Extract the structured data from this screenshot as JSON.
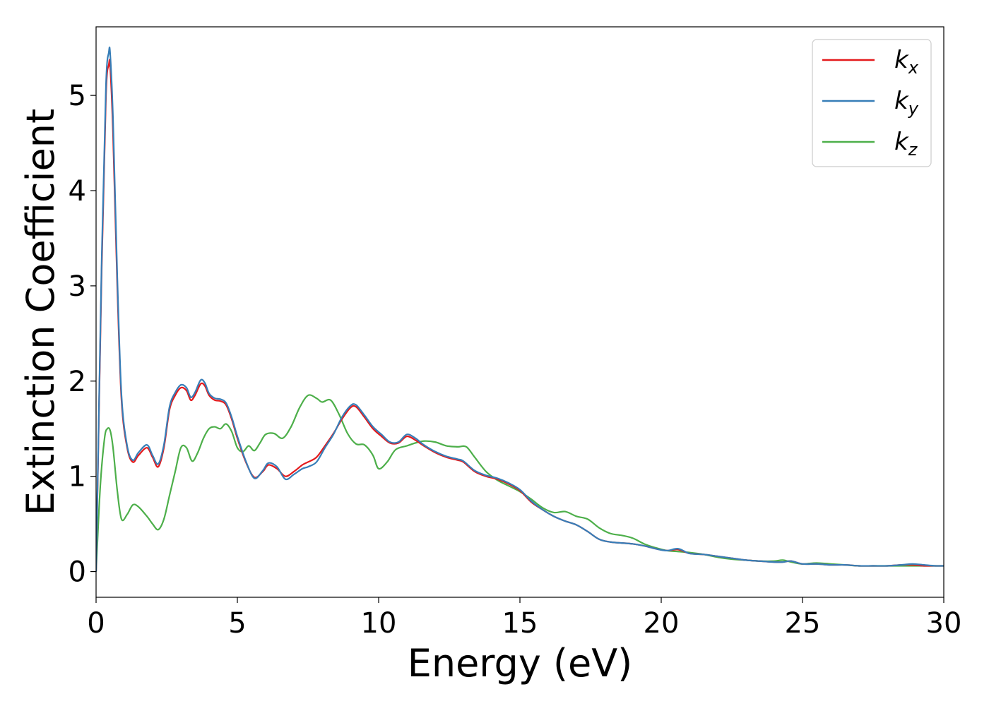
{
  "chart_data": {
    "type": "line",
    "xlabel": "Energy (eV)",
    "ylabel": "Extinction Coefficient",
    "xlim": [
      0,
      30
    ],
    "ylim": [
      -0.27,
      5.72
    ],
    "xticks": [
      "0",
      "5",
      "10",
      "15",
      "20",
      "25",
      "30"
    ],
    "yticks": [
      "0",
      "1",
      "2",
      "3",
      "4",
      "5"
    ],
    "grid": false,
    "legend_position": "top-right",
    "series": [
      {
        "name": "k_x",
        "label_base": "k",
        "label_sub": "x",
        "color": "#e41a1c",
        "x": [
          0,
          0.2,
          0.35,
          0.45,
          0.5,
          0.6,
          0.75,
          0.9,
          1.1,
          1.3,
          1.5,
          1.8,
          2.0,
          2.2,
          2.4,
          2.6,
          2.8,
          3.0,
          3.2,
          3.35,
          3.5,
          3.7,
          3.85,
          4.0,
          4.2,
          4.4,
          4.6,
          4.8,
          5.0,
          5.3,
          5.6,
          5.9,
          6.1,
          6.4,
          6.7,
          7.0,
          7.3,
          7.5,
          7.8,
          8.1,
          8.4,
          8.7,
          9.0,
          9.2,
          9.5,
          9.8,
          10.1,
          10.4,
          10.7,
          11.0,
          11.3,
          11.6,
          12.0,
          12.4,
          12.8,
          13.0,
          13.4,
          13.8,
          14.2,
          14.6,
          15.0,
          15.4,
          15.8,
          16.2,
          16.6,
          17.0,
          17.4,
          17.8,
          18.2,
          18.6,
          19.0,
          19.4,
          19.8,
          20.2,
          20.6,
          21.0,
          21.5,
          22.0,
          22.5,
          23.0,
          23.5,
          24.0,
          24.3,
          24.6,
          25.0,
          25.5,
          26.0,
          26.5,
          27.0,
          27.5,
          28.0,
          28.5,
          28.9,
          29.3,
          29.7,
          30.0
        ],
        "y": [
          0,
          3.2,
          5.0,
          5.32,
          5.3,
          4.6,
          3.0,
          1.8,
          1.3,
          1.15,
          1.22,
          1.3,
          1.2,
          1.1,
          1.3,
          1.7,
          1.85,
          1.93,
          1.9,
          1.8,
          1.85,
          1.97,
          1.95,
          1.85,
          1.8,
          1.79,
          1.75,
          1.6,
          1.4,
          1.15,
          0.99,
          1.05,
          1.12,
          1.08,
          1.0,
          1.05,
          1.12,
          1.15,
          1.2,
          1.32,
          1.45,
          1.6,
          1.72,
          1.73,
          1.62,
          1.5,
          1.42,
          1.35,
          1.35,
          1.42,
          1.38,
          1.32,
          1.25,
          1.2,
          1.17,
          1.15,
          1.05,
          1.0,
          0.97,
          0.92,
          0.85,
          0.73,
          0.65,
          0.58,
          0.53,
          0.49,
          0.42,
          0.34,
          0.31,
          0.3,
          0.29,
          0.27,
          0.24,
          0.22,
          0.23,
          0.19,
          0.18,
          0.16,
          0.14,
          0.12,
          0.11,
          0.1,
          0.1,
          0.11,
          0.08,
          0.08,
          0.07,
          0.07,
          0.06,
          0.06,
          0.06,
          0.07,
          0.07,
          0.06,
          0.06,
          0.06
        ]
      },
      {
        "name": "k_y",
        "label_base": "k",
        "label_sub": "y",
        "color": "#377eb8",
        "x": [
          0,
          0.2,
          0.35,
          0.45,
          0.5,
          0.6,
          0.75,
          0.9,
          1.1,
          1.3,
          1.5,
          1.8,
          2.0,
          2.2,
          2.4,
          2.6,
          2.8,
          3.0,
          3.2,
          3.35,
          3.5,
          3.7,
          3.85,
          4.0,
          4.2,
          4.4,
          4.6,
          4.8,
          5.0,
          5.3,
          5.6,
          5.9,
          6.1,
          6.4,
          6.7,
          7.0,
          7.3,
          7.5,
          7.8,
          8.1,
          8.4,
          8.7,
          9.0,
          9.2,
          9.5,
          9.8,
          10.1,
          10.4,
          10.7,
          11.0,
          11.3,
          11.6,
          12.0,
          12.4,
          12.8,
          13.0,
          13.4,
          13.8,
          14.2,
          14.6,
          15.0,
          15.4,
          15.8,
          16.2,
          16.6,
          17.0,
          17.4,
          17.8,
          18.2,
          18.6,
          19.0,
          19.4,
          19.8,
          20.2,
          20.6,
          21.0,
          21.5,
          22.0,
          22.5,
          23.0,
          23.5,
          24.0,
          24.3,
          24.6,
          25.0,
          25.5,
          26.0,
          26.5,
          27.0,
          27.5,
          28.0,
          28.5,
          28.9,
          29.3,
          29.7,
          30.0
        ],
        "y": [
          0,
          3.3,
          5.1,
          5.45,
          5.43,
          4.75,
          3.1,
          1.85,
          1.32,
          1.17,
          1.25,
          1.33,
          1.22,
          1.13,
          1.33,
          1.73,
          1.88,
          1.96,
          1.93,
          1.83,
          1.88,
          2.01,
          1.98,
          1.87,
          1.82,
          1.81,
          1.77,
          1.62,
          1.42,
          1.16,
          0.98,
          1.06,
          1.14,
          1.1,
          0.97,
          1.02,
          1.08,
          1.1,
          1.15,
          1.3,
          1.44,
          1.62,
          1.74,
          1.75,
          1.64,
          1.52,
          1.44,
          1.36,
          1.36,
          1.44,
          1.4,
          1.33,
          1.26,
          1.21,
          1.18,
          1.16,
          1.06,
          1.01,
          0.98,
          0.93,
          0.86,
          0.74,
          0.65,
          0.58,
          0.53,
          0.49,
          0.42,
          0.34,
          0.31,
          0.3,
          0.29,
          0.27,
          0.24,
          0.22,
          0.24,
          0.19,
          0.18,
          0.16,
          0.14,
          0.12,
          0.11,
          0.1,
          0.1,
          0.11,
          0.08,
          0.08,
          0.07,
          0.07,
          0.06,
          0.06,
          0.06,
          0.07,
          0.08,
          0.07,
          0.06,
          0.06
        ]
      },
      {
        "name": "k_z",
        "label_base": "k",
        "label_sub": "z",
        "color": "#4daf4a",
        "x": [
          0,
          0.15,
          0.3,
          0.4,
          0.5,
          0.6,
          0.75,
          0.9,
          1.1,
          1.3,
          1.5,
          1.8,
          2.0,
          2.2,
          2.4,
          2.6,
          2.8,
          3.0,
          3.2,
          3.4,
          3.6,
          3.8,
          4.0,
          4.2,
          4.4,
          4.6,
          4.8,
          5.0,
          5.2,
          5.4,
          5.6,
          5.8,
          6.0,
          6.3,
          6.6,
          6.9,
          7.2,
          7.5,
          7.8,
          8.0,
          8.3,
          8.6,
          8.9,
          9.2,
          9.5,
          9.8,
          10.0,
          10.3,
          10.6,
          11.0,
          11.3,
          11.6,
          12.0,
          12.4,
          12.8,
          13.1,
          13.4,
          13.8,
          14.2,
          14.6,
          15.0,
          15.4,
          15.8,
          16.2,
          16.6,
          17.0,
          17.4,
          17.8,
          18.2,
          18.6,
          19.0,
          19.4,
          19.8,
          20.2,
          20.6,
          21.0,
          21.5,
          22.0,
          22.5,
          23.0,
          23.5,
          24.0,
          24.3,
          24.6,
          25.0,
          25.5,
          26.0,
          26.5,
          27.0,
          27.5,
          28.0,
          28.5,
          28.9,
          29.3,
          29.7,
          30.0
        ],
        "y": [
          0,
          0.9,
          1.4,
          1.5,
          1.48,
          1.3,
          0.85,
          0.55,
          0.6,
          0.7,
          0.68,
          0.58,
          0.5,
          0.44,
          0.55,
          0.8,
          1.05,
          1.3,
          1.3,
          1.16,
          1.25,
          1.4,
          1.5,
          1.52,
          1.5,
          1.55,
          1.47,
          1.3,
          1.26,
          1.32,
          1.27,
          1.35,
          1.44,
          1.45,
          1.4,
          1.52,
          1.72,
          1.85,
          1.82,
          1.78,
          1.8,
          1.65,
          1.45,
          1.34,
          1.33,
          1.22,
          1.08,
          1.15,
          1.28,
          1.32,
          1.35,
          1.37,
          1.36,
          1.32,
          1.31,
          1.31,
          1.2,
          1.05,
          0.96,
          0.9,
          0.84,
          0.76,
          0.67,
          0.62,
          0.63,
          0.58,
          0.55,
          0.46,
          0.4,
          0.38,
          0.35,
          0.29,
          0.25,
          0.22,
          0.21,
          0.2,
          0.18,
          0.15,
          0.13,
          0.12,
          0.11,
          0.11,
          0.12,
          0.1,
          0.08,
          0.09,
          0.08,
          0.07,
          0.06,
          0.06,
          0.06,
          0.06,
          0.06,
          0.06,
          0.06,
          0.06
        ]
      }
    ]
  }
}
